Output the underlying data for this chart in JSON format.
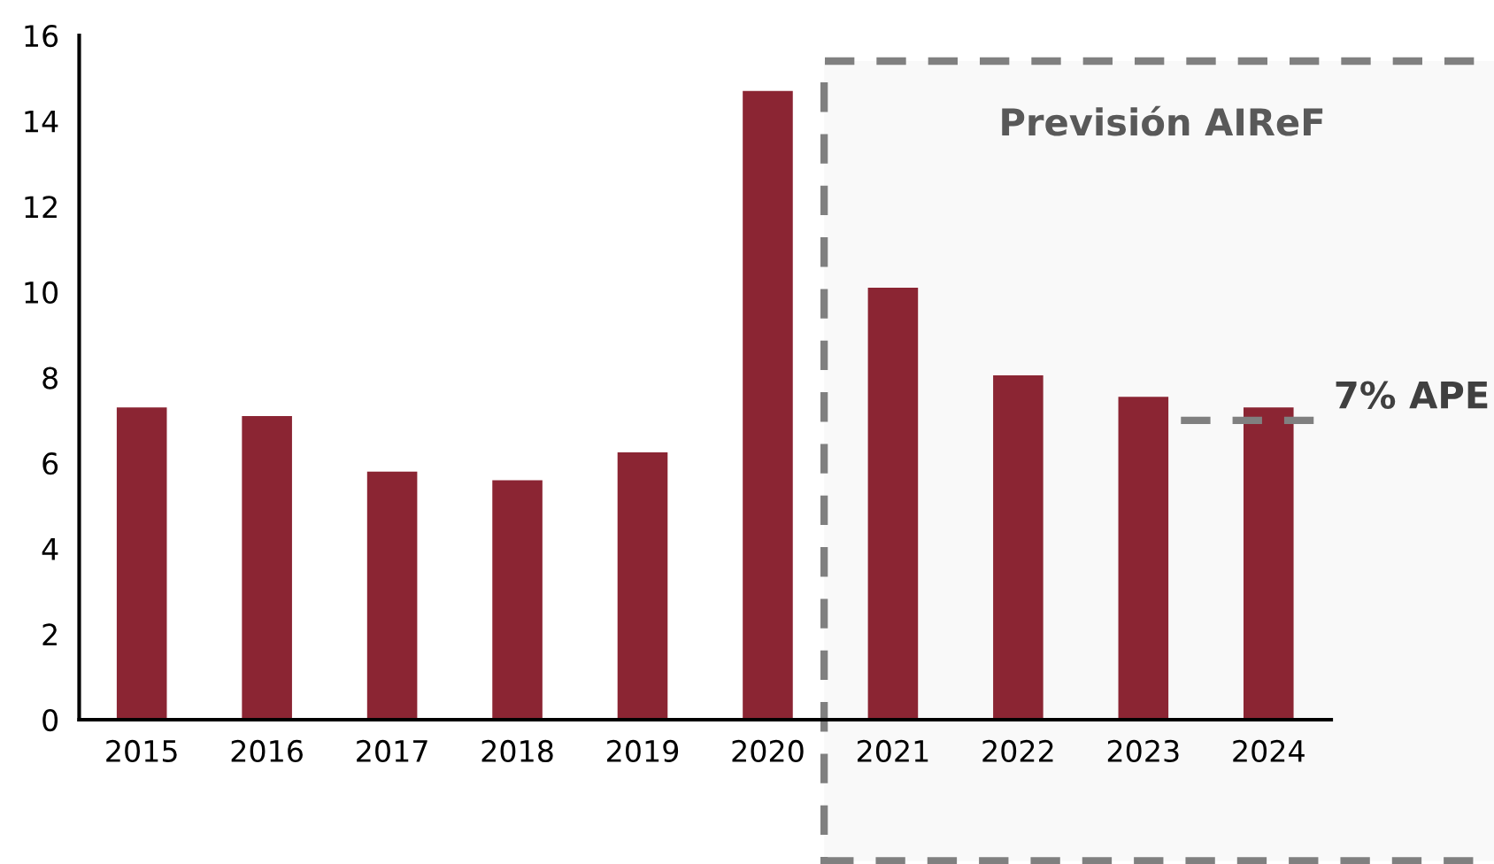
{
  "chart_data": {
    "type": "bar",
    "categories": [
      "2015",
      "2016",
      "2017",
      "2018",
      "2019",
      "2020",
      "2021",
      "2022",
      "2023",
      "2024"
    ],
    "values": [
      7.3,
      7.1,
      5.8,
      5.6,
      6.25,
      14.7,
      10.1,
      8.05,
      7.55,
      7.3
    ],
    "color": "#8b2533",
    "ylim": [
      0,
      16
    ],
    "yticks": [
      0,
      2,
      4,
      6,
      8,
      10,
      12,
      14,
      16
    ],
    "grid": false,
    "legend": false,
    "ref_lines": [
      {
        "axis": "y",
        "value": 7,
        "label": "7% APE",
        "color": "#808080",
        "line_style": "dashed"
      }
    ],
    "bands": [
      {
        "axis": "x",
        "from": "2021",
        "to": "2024",
        "label": "Previsión AIReF",
        "color": "#808080"
      }
    ]
  }
}
